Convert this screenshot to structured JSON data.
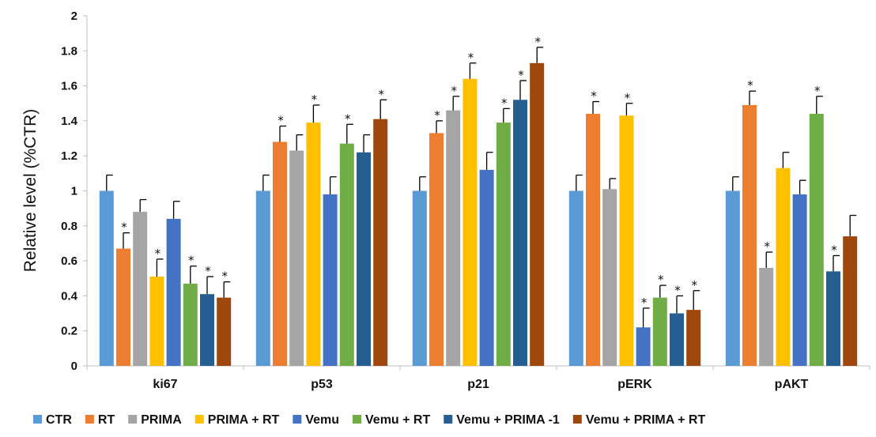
{
  "chart_data": {
    "type": "bar",
    "title": "",
    "xlabel": "",
    "ylabel": "Relative level (%CTR)",
    "ylim": [
      0,
      2
    ],
    "yticks": [
      "0",
      "0.2",
      "0.4",
      "0.6",
      "0.8",
      "1",
      "1.2",
      "1.4",
      "1.6",
      "1.8",
      "2"
    ],
    "grid": false,
    "legend_position": "bottom",
    "categories": [
      "ki67",
      "p53",
      "p21",
      "pERK",
      "pAKT"
    ],
    "series": [
      {
        "name": "CTR",
        "color": "#5B9BD5",
        "values": [
          1.0,
          1.0,
          1.0,
          1.0,
          1.0
        ],
        "errors": [
          0.09,
          0.09,
          0.08,
          0.09,
          0.08
        ],
        "significant": [
          false,
          false,
          false,
          false,
          false
        ]
      },
      {
        "name": "RT",
        "color": "#ED7D31",
        "values": [
          0.67,
          1.28,
          1.33,
          1.44,
          1.49
        ],
        "errors": [
          0.09,
          0.09,
          0.07,
          0.07,
          0.08
        ],
        "significant": [
          true,
          true,
          true,
          true,
          true
        ]
      },
      {
        "name": "PRIMA",
        "color": "#A5A5A5",
        "values": [
          0.88,
          1.23,
          1.46,
          1.01,
          0.56
        ],
        "errors": [
          0.07,
          0.09,
          0.08,
          0.06,
          0.09
        ],
        "significant": [
          false,
          false,
          true,
          false,
          true
        ]
      },
      {
        "name": "PRIMA + RT",
        "color": "#FFC000",
        "values": [
          0.51,
          1.39,
          1.64,
          1.43,
          1.13
        ],
        "errors": [
          0.1,
          0.1,
          0.09,
          0.07,
          0.09
        ],
        "significant": [
          true,
          true,
          true,
          true,
          false
        ]
      },
      {
        "name": "Vemu",
        "color": "#4472C4",
        "values": [
          0.84,
          0.98,
          1.12,
          0.22,
          0.98
        ],
        "errors": [
          0.1,
          0.1,
          0.1,
          0.11,
          0.08
        ],
        "significant": [
          false,
          false,
          false,
          true,
          false
        ]
      },
      {
        "name": "Vemu + RT",
        "color": "#70AD47",
        "values": [
          0.47,
          1.27,
          1.39,
          0.39,
          1.44
        ],
        "errors": [
          0.1,
          0.11,
          0.08,
          0.07,
          0.1
        ],
        "significant": [
          true,
          true,
          true,
          true,
          true
        ]
      },
      {
        "name": "Vemu + PRIMA -1",
        "color": "#255E91",
        "values": [
          0.41,
          1.22,
          1.52,
          0.3,
          0.54
        ],
        "errors": [
          0.1,
          0.1,
          0.11,
          0.1,
          0.09
        ],
        "significant": [
          true,
          false,
          true,
          true,
          true
        ]
      },
      {
        "name": "Vemu + PRIMA + RT",
        "color": "#9E480E",
        "values": [
          0.39,
          1.41,
          1.73,
          0.32,
          0.74
        ],
        "errors": [
          0.09,
          0.11,
          0.09,
          0.11,
          0.12
        ],
        "significant": [
          true,
          true,
          true,
          true,
          false
        ]
      }
    ],
    "significance_marker": "*"
  }
}
